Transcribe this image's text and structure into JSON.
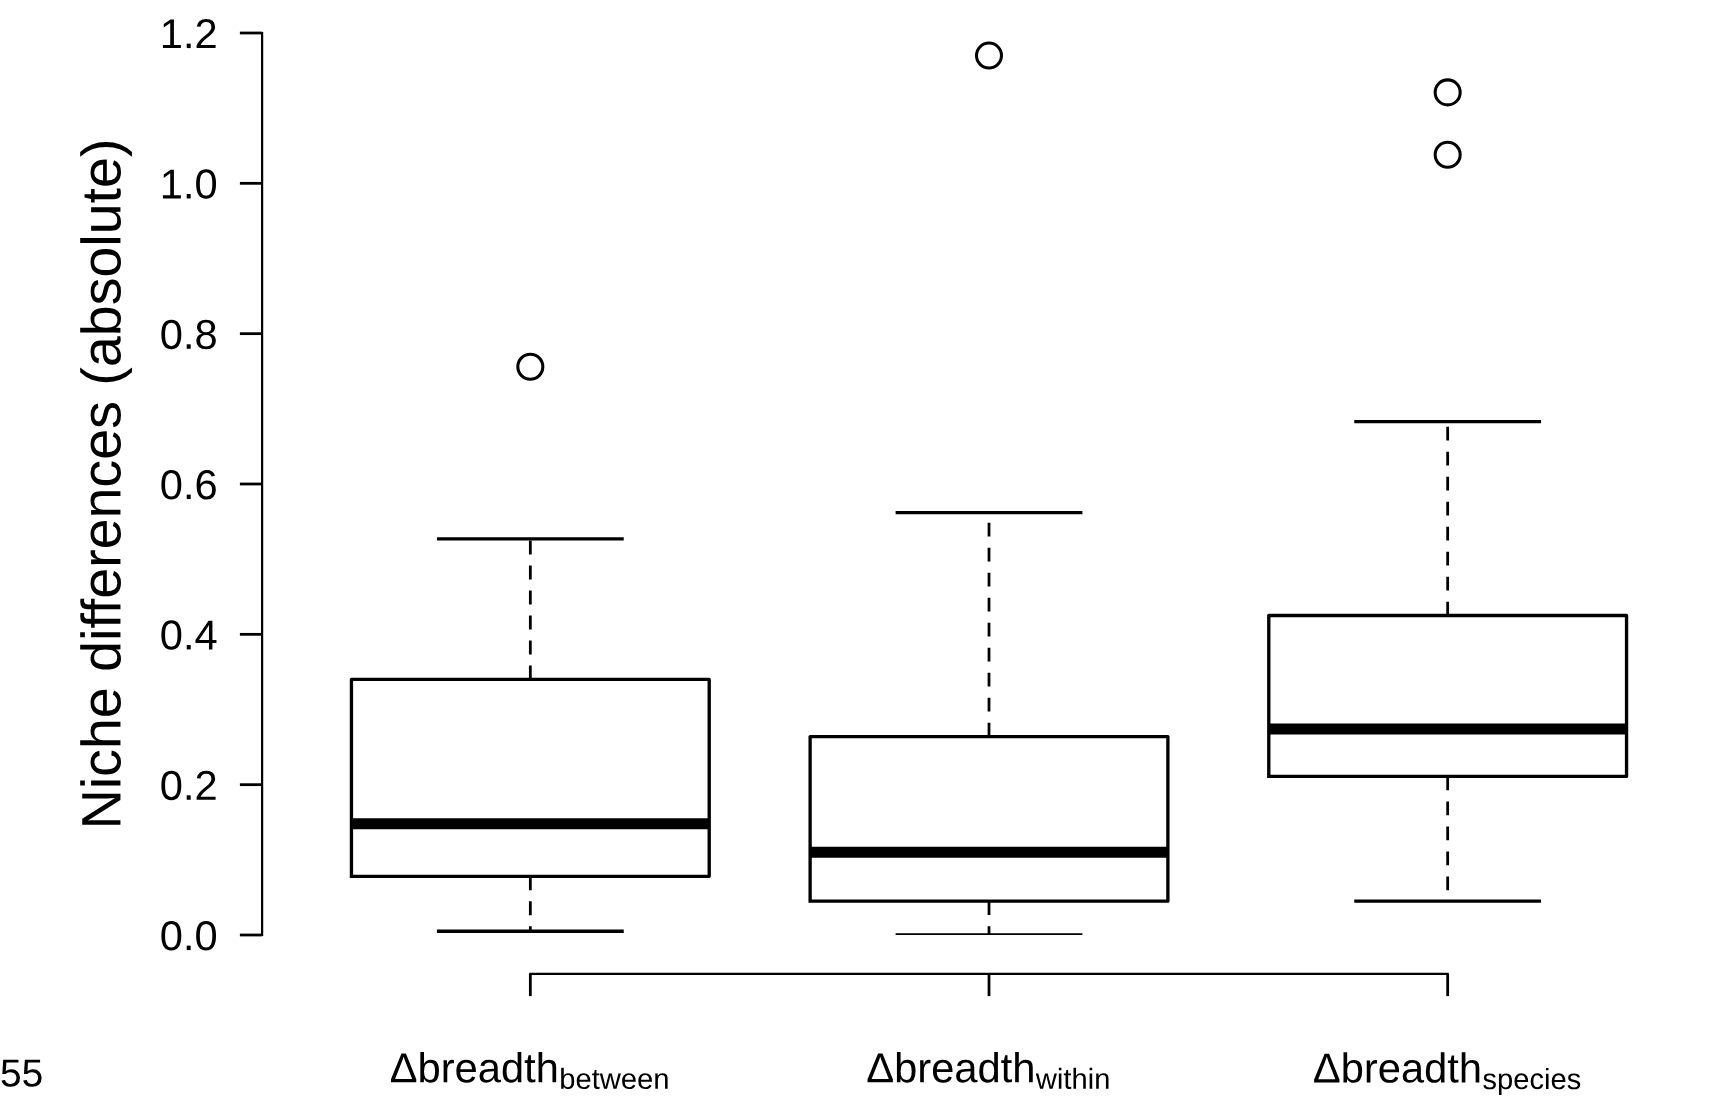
{
  "chart_data": {
    "type": "box",
    "ylabel": "Niche differences (absolute)",
    "categories": [
      "Δbreadth$_{between}$",
      "Δbreadth$_{within}$",
      "Δbreadth$_{species}$"
    ],
    "boxes": [
      {
        "low": 0.005,
        "q1": 0.078,
        "median": 0.148,
        "q3": 0.34,
        "high": 0.527,
        "outliers": [
          0.756
        ]
      },
      {
        "low": 0.0,
        "q1": 0.045,
        "median": 0.11,
        "q3": 0.264,
        "high": 0.562,
        "outliers": [
          1.17
        ]
      },
      {
        "low": 0.045,
        "q1": 0.211,
        "median": 0.274,
        "q3": 0.425,
        "high": 0.683,
        "outliers": [
          1.038,
          1.121
        ]
      }
    ],
    "ylim": [
      0,
      1.2
    ],
    "yticks": [
      {
        "value": 0,
        "label": "0.0"
      },
      {
        "value": 0.2,
        "label": "0.2"
      },
      {
        "value": 0.4,
        "label": "0.4"
      },
      {
        "value": 0.6,
        "label": "0.6"
      },
      {
        "value": 0.8,
        "label": "0.8"
      },
      {
        "value": 1.0,
        "label": "1.0"
      },
      {
        "value": 1.2,
        "label": "1.2"
      }
    ],
    "grid": false,
    "legend": false,
    "annotations": [
      "55"
    ]
  }
}
